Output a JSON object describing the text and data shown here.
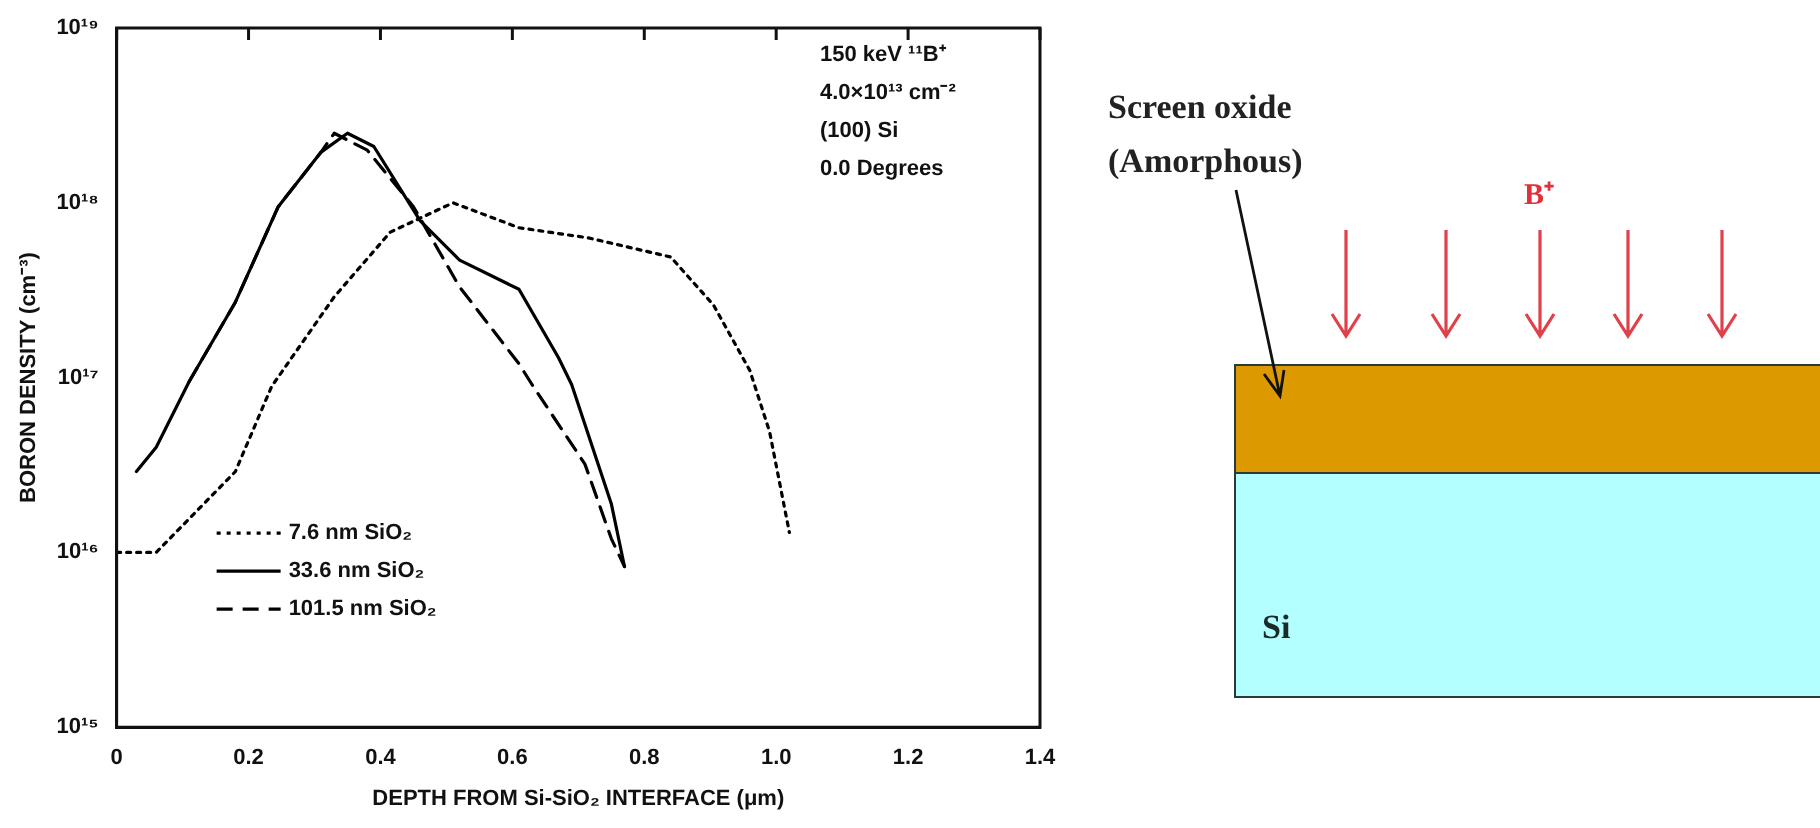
{
  "chart_data": {
    "type": "line",
    "xlabel": "DEPTH FROM Si-SiO₂ INTERFACE (μm)",
    "ylabel": "BORON DENSITY (cm⁻³)",
    "log": "y",
    "xlim": [
      0,
      1.4
    ],
    "xticks": [
      0,
      0.2,
      0.4,
      0.6,
      0.8,
      {
        "value": 1,
        "label": "1.0"
      },
      1.2,
      1.4
    ],
    "ylim": [
      1000000000000000.0,
      1e+19
    ],
    "yticks": [
      {
        "value": 1000000000000000.0,
        "label": "10¹⁵"
      },
      {
        "value": 1e+16,
        "label": "10¹⁶"
      },
      {
        "value": 1e+17,
        "label": "10¹⁷"
      },
      {
        "value": 1e+18,
        "label": "10¹⁸"
      },
      {
        "value": 1e+19,
        "label": "10¹⁹"
      }
    ],
    "grid": false,
    "legend": "bottom left",
    "marker": "none",
    "series": [
      {
        "name": "7.6 nm SiO₂",
        "color": "#000000",
        "line_style": "dotted",
        "x": [
          0,
          0.06,
          0.18,
          0.235,
          0.33,
          0.415,
          0.51,
          0.61,
          0.715,
          0.84,
          0.905,
          0.96,
          0.99,
          1.02
        ],
        "values": [
          1e+16,
          1e+16,
          2.9e+16,
          8.9e+16,
          2.9e+17,
          6.8e+17,
          1e+18,
          7.2e+17,
          6.3e+17,
          4.9e+17,
          2.6e+17,
          1.1e+17,
          4.9e+16,
          1.3e+16
        ]
      },
      {
        "name": "33.6 nm SiO₂",
        "color": "#000000",
        "line_style": "solid",
        "x": [
          0.03,
          0.06,
          0.11,
          0.18,
          0.245,
          0.31,
          0.35,
          0.39,
          0.46,
          0.52,
          0.61,
          0.67,
          0.69,
          0.75,
          0.77
        ],
        "values": [
          2.9e+16,
          4e+16,
          9.5e+16,
          2.7e+17,
          9.5e+17,
          1.95e+18,
          2.5e+18,
          2.1e+18,
          7.9e+17,
          4.7e+17,
          3.2e+17,
          1.3e+17,
          9.1e+16,
          1.9e+16,
          8300000000000000.0
        ]
      },
      {
        "name": "101.5 nm SiO₂",
        "color": "#000000",
        "line_style": "dashed",
        "x": [
          0.11,
          0.18,
          0.245,
          0.31,
          0.33,
          0.38,
          0.45,
          0.52,
          0.61,
          0.63,
          0.71,
          0.75,
          0.77
        ],
        "values": [
          9.5e+16,
          2.7e+17,
          9.5e+17,
          1.95e+18,
          2.5e+18,
          2e+18,
          9.5e+17,
          3.3e+17,
          1.2e+17,
          9.1e+16,
          3.2e+16,
          1.2e+16,
          8300000000000000.0
        ]
      }
    ],
    "annotations": [
      "150 keV ¹¹B⁺",
      "4.0×10¹³ cm⁻²",
      "(100) Si",
      "0.0 Degrees",
      "Screen oxide",
      "(Amorphous)",
      "B⁺",
      "Si"
    ]
  }
}
